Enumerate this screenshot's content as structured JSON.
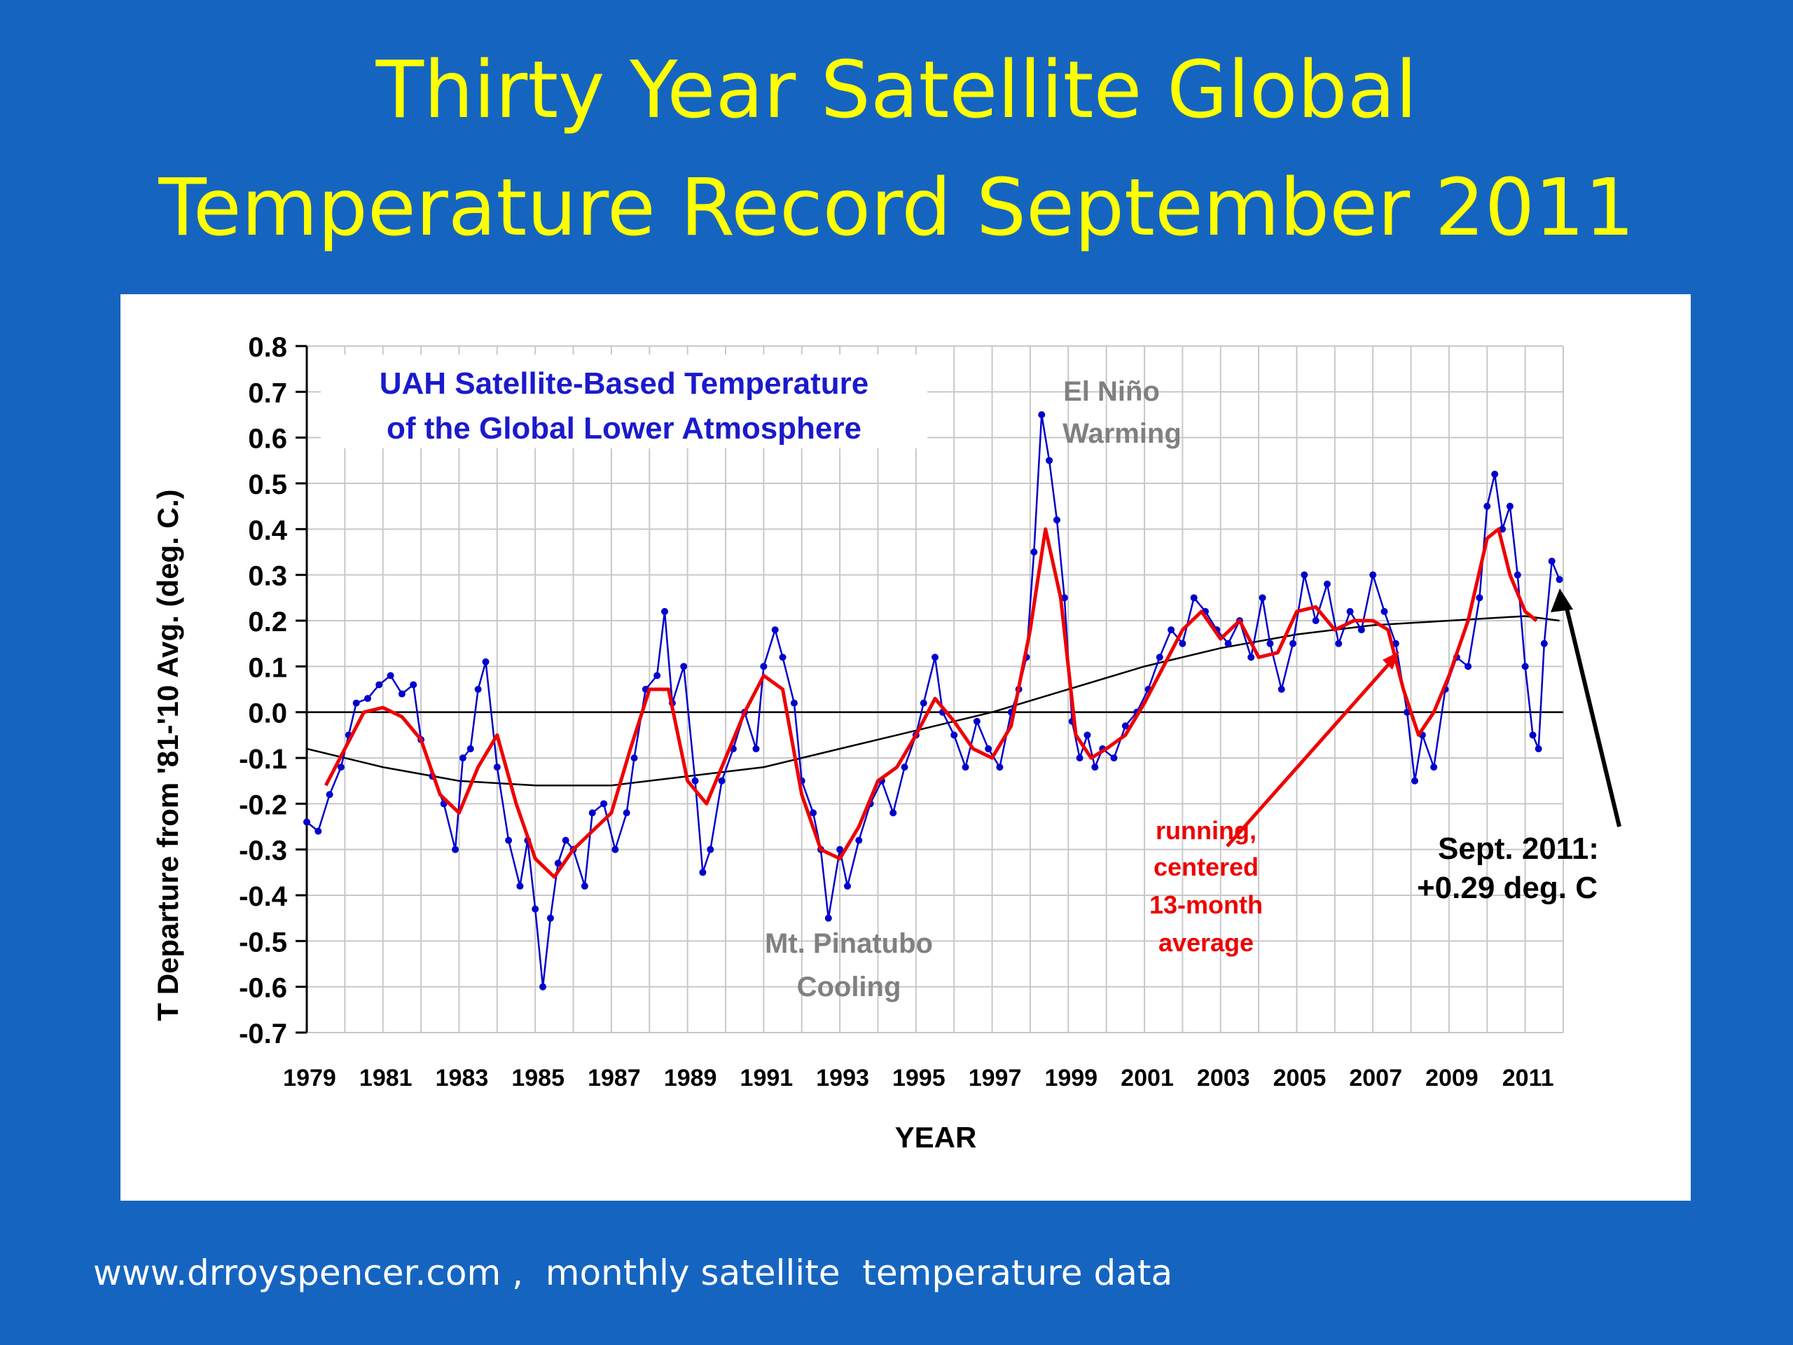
{
  "slide": {
    "title_line1": "Thirty Year Satellite Global",
    "title_line2": "Temperature Record September 2011",
    "footer": "www.drroyspencer.com ,  monthly satellite  temperature data"
  },
  "colors": {
    "background": "#1565c0",
    "title": "#ffff00",
    "monthly_series": "#0000cc",
    "running_mean": "#ee0000",
    "trend": "#000000",
    "annotation_gray": "#808080",
    "chart_title": "#1a1acc"
  },
  "chart_data": {
    "type": "line",
    "title_line1": "UAH Satellite-Based Temperature",
    "title_line2": "of the Global Lower Atmosphere",
    "xlabel": "YEAR",
    "ylabel": "T Departure from '81-'10 Avg. (deg. C.)",
    "xlim": [
      1979,
      2012
    ],
    "ylim": [
      -0.7,
      0.8
    ],
    "grid": true,
    "x_ticks": [
      "1979",
      "1981",
      "1983",
      "1985",
      "1987",
      "1989",
      "1991",
      "1993",
      "1995",
      "1997",
      "1999",
      "2001",
      "2003",
      "2005",
      "2007",
      "2009",
      "2011"
    ],
    "y_ticks": [
      "0.8",
      "0.7",
      "0.6",
      "0.5",
      "0.4",
      "0.3",
      "0.2",
      "0.1",
      "0.0",
      "-0.1",
      "-0.2",
      "-0.3",
      "-0.4",
      "-0.5",
      "-0.6",
      "-0.7"
    ],
    "series": [
      {
        "key": "monthly",
        "style": "line+markers",
        "points": [
          [
            1979.0,
            -0.24
          ],
          [
            1979.3,
            -0.26
          ],
          [
            1979.6,
            -0.18
          ],
          [
            1979.9,
            -0.12
          ],
          [
            1980.1,
            -0.05
          ],
          [
            1980.3,
            0.02
          ],
          [
            1980.6,
            0.03
          ],
          [
            1980.9,
            0.06
          ],
          [
            1981.2,
            0.08
          ],
          [
            1981.5,
            0.04
          ],
          [
            1981.8,
            0.06
          ],
          [
            1982.0,
            -0.06
          ],
          [
            1982.3,
            -0.14
          ],
          [
            1982.6,
            -0.2
          ],
          [
            1982.9,
            -0.3
          ],
          [
            1983.1,
            -0.1
          ],
          [
            1983.3,
            -0.08
          ],
          [
            1983.5,
            0.05
          ],
          [
            1983.7,
            0.11
          ],
          [
            1984.0,
            -0.12
          ],
          [
            1984.3,
            -0.28
          ],
          [
            1984.6,
            -0.38
          ],
          [
            1984.8,
            -0.28
          ],
          [
            1985.0,
            -0.43
          ],
          [
            1985.2,
            -0.6
          ],
          [
            1985.4,
            -0.45
          ],
          [
            1985.6,
            -0.33
          ],
          [
            1985.8,
            -0.28
          ],
          [
            1986.0,
            -0.3
          ],
          [
            1986.3,
            -0.38
          ],
          [
            1986.5,
            -0.22
          ],
          [
            1986.8,
            -0.2
          ],
          [
            1987.1,
            -0.3
          ],
          [
            1987.4,
            -0.22
          ],
          [
            1987.6,
            -0.1
          ],
          [
            1987.9,
            0.05
          ],
          [
            1988.2,
            0.08
          ],
          [
            1988.4,
            0.22
          ],
          [
            1988.6,
            0.02
          ],
          [
            1988.9,
            0.1
          ],
          [
            1989.2,
            -0.15
          ],
          [
            1989.4,
            -0.35
          ],
          [
            1989.6,
            -0.3
          ],
          [
            1989.9,
            -0.15
          ],
          [
            1990.2,
            -0.08
          ],
          [
            1990.5,
            0.0
          ],
          [
            1990.8,
            -0.08
          ],
          [
            1991.0,
            0.1
          ],
          [
            1991.3,
            0.18
          ],
          [
            1991.5,
            0.12
          ],
          [
            1991.8,
            0.02
          ],
          [
            1992.0,
            -0.15
          ],
          [
            1992.3,
            -0.22
          ],
          [
            1992.5,
            -0.3
          ],
          [
            1992.7,
            -0.45
          ],
          [
            1993.0,
            -0.3
          ],
          [
            1993.2,
            -0.38
          ],
          [
            1993.5,
            -0.28
          ],
          [
            1993.8,
            -0.2
          ],
          [
            1994.1,
            -0.15
          ],
          [
            1994.4,
            -0.22
          ],
          [
            1994.7,
            -0.12
          ],
          [
            1995.0,
            -0.05
          ],
          [
            1995.2,
            0.02
          ],
          [
            1995.5,
            0.12
          ],
          [
            1995.7,
            0.0
          ],
          [
            1996.0,
            -0.05
          ],
          [
            1996.3,
            -0.12
          ],
          [
            1996.6,
            -0.02
          ],
          [
            1996.9,
            -0.08
          ],
          [
            1997.2,
            -0.12
          ],
          [
            1997.5,
            0.0
          ],
          [
            1997.7,
            0.05
          ],
          [
            1997.9,
            0.12
          ],
          [
            1998.1,
            0.35
          ],
          [
            1998.3,
            0.65
          ],
          [
            1998.5,
            0.55
          ],
          [
            1998.7,
            0.42
          ],
          [
            1998.9,
            0.25
          ],
          [
            1999.1,
            -0.02
          ],
          [
            1999.3,
            -0.1
          ],
          [
            1999.5,
            -0.05
          ],
          [
            1999.7,
            -0.12
          ],
          [
            1999.9,
            -0.08
          ],
          [
            2000.2,
            -0.1
          ],
          [
            2000.5,
            -0.03
          ],
          [
            2000.8,
            0.0
          ],
          [
            2001.1,
            0.05
          ],
          [
            2001.4,
            0.12
          ],
          [
            2001.7,
            0.18
          ],
          [
            2002.0,
            0.15
          ],
          [
            2002.3,
            0.25
          ],
          [
            2002.6,
            0.22
          ],
          [
            2002.9,
            0.18
          ],
          [
            2003.2,
            0.15
          ],
          [
            2003.5,
            0.2
          ],
          [
            2003.8,
            0.12
          ],
          [
            2004.1,
            0.25
          ],
          [
            2004.3,
            0.15
          ],
          [
            2004.6,
            0.05
          ],
          [
            2004.9,
            0.15
          ],
          [
            2005.2,
            0.3
          ],
          [
            2005.5,
            0.2
          ],
          [
            2005.8,
            0.28
          ],
          [
            2006.1,
            0.15
          ],
          [
            2006.4,
            0.22
          ],
          [
            2006.7,
            0.18
          ],
          [
            2007.0,
            0.3
          ],
          [
            2007.3,
            0.22
          ],
          [
            2007.6,
            0.15
          ],
          [
            2007.9,
            0.0
          ],
          [
            2008.1,
            -0.15
          ],
          [
            2008.3,
            -0.05
          ],
          [
            2008.6,
            -0.12
          ],
          [
            2008.9,
            0.05
          ],
          [
            2009.2,
            0.12
          ],
          [
            2009.5,
            0.1
          ],
          [
            2009.8,
            0.25
          ],
          [
            2010.0,
            0.45
          ],
          [
            2010.2,
            0.52
          ],
          [
            2010.4,
            0.4
          ],
          [
            2010.6,
            0.45
          ],
          [
            2010.8,
            0.3
          ],
          [
            2011.0,
            0.1
          ],
          [
            2011.2,
            -0.05
          ],
          [
            2011.35,
            -0.08
          ],
          [
            2011.5,
            0.15
          ],
          [
            2011.7,
            0.33
          ],
          [
            2011.9,
            0.29
          ]
        ]
      },
      {
        "key": "running_mean",
        "name": "running, centered 13-month average",
        "style": "line",
        "points": [
          [
            1979.5,
            -0.16
          ],
          [
            1980.0,
            -0.08
          ],
          [
            1980.5,
            0.0
          ],
          [
            1981.0,
            0.01
          ],
          [
            1981.5,
            -0.01
          ],
          [
            1982.0,
            -0.06
          ],
          [
            1982.5,
            -0.18
          ],
          [
            1983.0,
            -0.22
          ],
          [
            1983.5,
            -0.12
          ],
          [
            1984.0,
            -0.05
          ],
          [
            1984.5,
            -0.2
          ],
          [
            1985.0,
            -0.32
          ],
          [
            1985.5,
            -0.36
          ],
          [
            1986.0,
            -0.3
          ],
          [
            1986.5,
            -0.26
          ],
          [
            1987.0,
            -0.22
          ],
          [
            1987.5,
            -0.08
          ],
          [
            1988.0,
            0.05
          ],
          [
            1988.5,
            0.05
          ],
          [
            1989.0,
            -0.15
          ],
          [
            1989.5,
            -0.2
          ],
          [
            1990.0,
            -0.1
          ],
          [
            1990.5,
            0.0
          ],
          [
            1991.0,
            0.08
          ],
          [
            1991.5,
            0.05
          ],
          [
            1992.0,
            -0.18
          ],
          [
            1992.5,
            -0.3
          ],
          [
            1993.0,
            -0.32
          ],
          [
            1993.5,
            -0.25
          ],
          [
            1994.0,
            -0.15
          ],
          [
            1994.5,
            -0.12
          ],
          [
            1995.0,
            -0.05
          ],
          [
            1995.5,
            0.03
          ],
          [
            1996.0,
            -0.02
          ],
          [
            1996.5,
            -0.08
          ],
          [
            1997.0,
            -0.1
          ],
          [
            1997.5,
            -0.03
          ],
          [
            1998.0,
            0.18
          ],
          [
            1998.4,
            0.4
          ],
          [
            1998.8,
            0.25
          ],
          [
            1999.2,
            -0.05
          ],
          [
            1999.6,
            -0.1
          ],
          [
            2000.0,
            -0.08
          ],
          [
            2000.5,
            -0.05
          ],
          [
            2001.0,
            0.02
          ],
          [
            2001.5,
            0.1
          ],
          [
            2002.0,
            0.18
          ],
          [
            2002.5,
            0.22
          ],
          [
            2003.0,
            0.16
          ],
          [
            2003.5,
            0.2
          ],
          [
            2004.0,
            0.12
          ],
          [
            2004.5,
            0.13
          ],
          [
            2005.0,
            0.22
          ],
          [
            2005.5,
            0.23
          ],
          [
            2006.0,
            0.18
          ],
          [
            2006.5,
            0.2
          ],
          [
            2007.0,
            0.2
          ],
          [
            2007.4,
            0.18
          ],
          [
            2007.8,
            0.05
          ],
          [
            2008.2,
            -0.05
          ],
          [
            2008.6,
            0.0
          ],
          [
            2009.0,
            0.08
          ],
          [
            2009.5,
            0.2
          ],
          [
            2010.0,
            0.38
          ],
          [
            2010.3,
            0.4
          ],
          [
            2010.6,
            0.3
          ],
          [
            2011.0,
            0.22
          ],
          [
            2011.3,
            0.2
          ]
        ]
      },
      {
        "key": "trend",
        "style": "line",
        "points": [
          [
            1979.0,
            -0.08
          ],
          [
            1981.0,
            -0.12
          ],
          [
            1983.0,
            -0.15
          ],
          [
            1985.0,
            -0.16
          ],
          [
            1987.0,
            -0.16
          ],
          [
            1989.0,
            -0.14
          ],
          [
            1991.0,
            -0.12
          ],
          [
            1993.0,
            -0.08
          ],
          [
            1995.0,
            -0.04
          ],
          [
            1997.0,
            0.0
          ],
          [
            1999.0,
            0.05
          ],
          [
            2001.0,
            0.1
          ],
          [
            2003.0,
            0.14
          ],
          [
            2005.0,
            0.17
          ],
          [
            2007.0,
            0.19
          ],
          [
            2009.0,
            0.2
          ],
          [
            2011.0,
            0.21
          ],
          [
            2011.9,
            0.2
          ]
        ]
      }
    ],
    "annotations": {
      "el_nino_1": "El Niño",
      "el_nino_2": "Warming",
      "pinatubo_1": "Mt. Pinatubo",
      "pinatubo_2": "Cooling",
      "running_1": "running,",
      "running_2": "centered",
      "running_3": "13-month",
      "running_4": "average",
      "latest_1": "Sept. 2011:",
      "latest_2": "+0.29 deg. C"
    }
  }
}
